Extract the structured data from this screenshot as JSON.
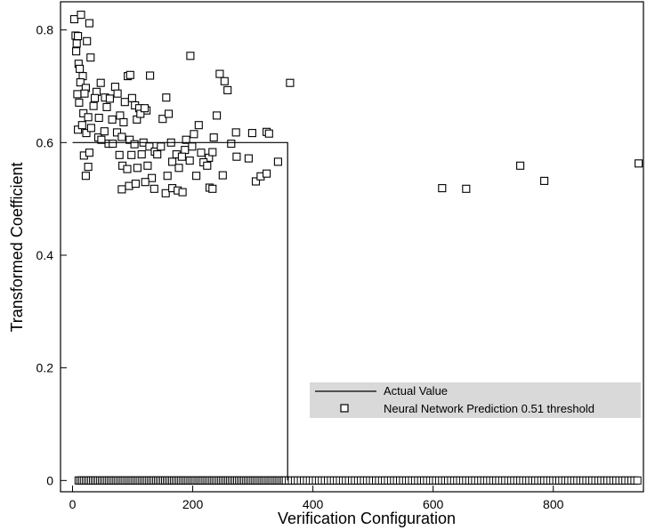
{
  "chart_data": {
    "type": "scatter",
    "title": "",
    "xlabel": "Verification Configuration",
    "ylabel": "Transformed Coefficient",
    "xlim": [
      -20,
      950
    ],
    "ylim": [
      -0.02,
      0.85
    ],
    "xticks": [
      0,
      200,
      400,
      600,
      800
    ],
    "yticks": [
      0,
      0.2,
      0.4,
      0.6,
      0.8
    ],
    "xtick_labels": [
      "0",
      "200",
      "400",
      "600",
      "800"
    ],
    "ytick_labels": [
      "0",
      "0.2",
      "0.4",
      "0.6",
      "0.8"
    ],
    "grid": false,
    "legend_placement": "lower-right",
    "series": [
      {
        "name": "Actual Value",
        "type": "step-line",
        "color": "#000000",
        "points": [
          [
            0,
            0.6
          ],
          [
            358,
            0.6
          ],
          [
            358,
            0.0
          ]
        ]
      },
      {
        "name": "Neural Network Prediction 0.51 threshold",
        "type": "scatter",
        "marker": "open-square",
        "color": "#000000",
        "points": [
          [
            3,
            0.819
          ],
          [
            14,
            0.827
          ],
          [
            28,
            0.812
          ],
          [
            5,
            0.79
          ],
          [
            9,
            0.789
          ],
          [
            7,
            0.776
          ],
          [
            24,
            0.78
          ],
          [
            6,
            0.762
          ],
          [
            10,
            0.74
          ],
          [
            30,
            0.751
          ],
          [
            12,
            0.731
          ],
          [
            17,
            0.718
          ],
          [
            13,
            0.707
          ],
          [
            22,
            0.697
          ],
          [
            40,
            0.69
          ],
          [
            47,
            0.706
          ],
          [
            8,
            0.686
          ],
          [
            20,
            0.687
          ],
          [
            37,
            0.679
          ],
          [
            54,
            0.68
          ],
          [
            62,
            0.678
          ],
          [
            71,
            0.699
          ],
          [
            75,
            0.687
          ],
          [
            87,
            0.672
          ],
          [
            92,
            0.718
          ],
          [
            96,
            0.72
          ],
          [
            129,
            0.719
          ],
          [
            104,
            0.666
          ],
          [
            111,
            0.661
          ],
          [
            123,
            0.657
          ],
          [
            11,
            0.671
          ],
          [
            18,
            0.652
          ],
          [
            26,
            0.645
          ],
          [
            35,
            0.665
          ],
          [
            44,
            0.644
          ],
          [
            57,
            0.663
          ],
          [
            66,
            0.641
          ],
          [
            79,
            0.648
          ],
          [
            85,
            0.636
          ],
          [
            99,
            0.679
          ],
          [
            107,
            0.641
          ],
          [
            113,
            0.651
          ],
          [
            120,
            0.661
          ],
          [
            150,
            0.642
          ],
          [
            156,
            0.68
          ],
          [
            160,
            0.651
          ],
          [
            196,
            0.754
          ],
          [
            245,
            0.722
          ],
          [
            253,
            0.709
          ],
          [
            258,
            0.693
          ],
          [
            362,
            0.706
          ],
          [
            210,
            0.631
          ],
          [
            202,
            0.615
          ],
          [
            240,
            0.648
          ],
          [
            189,
            0.605
          ],
          [
            9,
            0.623
          ],
          [
            16,
            0.631
          ],
          [
            23,
            0.617
          ],
          [
            31,
            0.626
          ],
          [
            43,
            0.609
          ],
          [
            53,
            0.62
          ],
          [
            60,
            0.598
          ],
          [
            74,
            0.618
          ],
          [
            82,
            0.61
          ],
          [
            95,
            0.605
          ],
          [
            103,
            0.597
          ],
          [
            118,
            0.6
          ],
          [
            128,
            0.593
          ],
          [
            137,
            0.584
          ],
          [
            147,
            0.593
          ],
          [
            164,
            0.6
          ],
          [
            173,
            0.579
          ],
          [
            187,
            0.587
          ],
          [
            199,
            0.593
          ],
          [
            214,
            0.582
          ],
          [
            227,
            0.573
          ],
          [
            235,
            0.609
          ],
          [
            264,
            0.598
          ],
          [
            272,
            0.618
          ],
          [
            299,
            0.617
          ],
          [
            323,
            0.619
          ],
          [
            327,
            0.616
          ],
          [
            26,
            0.557
          ],
          [
            19,
            0.577
          ],
          [
            28,
            0.582
          ],
          [
            22,
            0.541
          ],
          [
            48,
            0.605
          ],
          [
            67,
            0.598
          ],
          [
            78,
            0.578
          ],
          [
            83,
            0.559
          ],
          [
            91,
            0.553
          ],
          [
            98,
            0.578
          ],
          [
            108,
            0.555
          ],
          [
            115,
            0.579
          ],
          [
            125,
            0.559
          ],
          [
            132,
            0.537
          ],
          [
            141,
            0.579
          ],
          [
            158,
            0.541
          ],
          [
            166,
            0.566
          ],
          [
            177,
            0.555
          ],
          [
            182,
            0.575
          ],
          [
            195,
            0.568
          ],
          [
            206,
            0.541
          ],
          [
            218,
            0.565
          ],
          [
            224,
            0.559
          ],
          [
            233,
            0.583
          ],
          [
            250,
            0.542
          ],
          [
            273,
            0.575
          ],
          [
            293,
            0.572
          ],
          [
            305,
            0.531
          ],
          [
            313,
            0.54
          ],
          [
            323,
            0.545
          ],
          [
            342,
            0.566
          ],
          [
            82,
            0.517
          ],
          [
            94,
            0.523
          ],
          [
            105,
            0.527
          ],
          [
            121,
            0.53
          ],
          [
            136,
            0.518
          ],
          [
            155,
            0.51
          ],
          [
            166,
            0.519
          ],
          [
            175,
            0.515
          ],
          [
            183,
            0.512
          ],
          [
            228,
            0.52
          ],
          [
            233,
            0.518
          ],
          [
            615,
            0.519
          ],
          [
            655,
            0.518
          ],
          [
            745,
            0.559
          ],
          [
            785,
            0.532
          ],
          [
            942,
            0.563
          ]
        ]
      }
    ],
    "zero_row": {
      "y": 0,
      "x_start": 10,
      "x_end": 943,
      "dense_spacing": 3,
      "sparse_spacing": 5,
      "sparse_after": 355,
      "note": "continuous row of open-square predictions at value 0 along the x axis"
    }
  }
}
